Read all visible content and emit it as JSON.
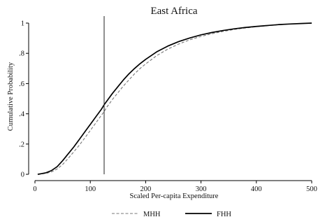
{
  "chart_data": {
    "type": "line",
    "title": "East Africa",
    "xlabel": "Scaled Per-capita Expenditure",
    "ylabel": "Cumulative Probability",
    "xlim": [
      0,
      500
    ],
    "ylim": [
      0,
      1
    ],
    "x_ticks": [
      {
        "value": 0,
        "label": "0"
      },
      {
        "value": 100,
        "label": "100"
      },
      {
        "value": 200,
        "label": "200"
      },
      {
        "value": 300,
        "label": "300"
      },
      {
        "value": 400,
        "label": "400"
      },
      {
        "value": 500,
        "label": "500"
      }
    ],
    "y_ticks": [
      {
        "value": 0,
        "label": "0"
      },
      {
        "value": 0.2,
        "label": ".2"
      },
      {
        "value": 0.4,
        "label": ".4"
      },
      {
        "value": 0.6,
        "label": ".6"
      },
      {
        "value": 0.8,
        "label": ".8"
      },
      {
        "value": 1,
        "label": "1"
      }
    ],
    "grid": false,
    "legend_position": "bottom",
    "reference_line_x": 125,
    "series": [
      {
        "name": "MHH",
        "style": "dashed",
        "color": "#777777",
        "points": [
          [
            5,
            0.0
          ],
          [
            10,
            0.002
          ],
          [
            20,
            0.006
          ],
          [
            30,
            0.016
          ],
          [
            40,
            0.035
          ],
          [
            50,
            0.065
          ],
          [
            60,
            0.105
          ],
          [
            70,
            0.148
          ],
          [
            80,
            0.192
          ],
          [
            90,
            0.24
          ],
          [
            100,
            0.29
          ],
          [
            110,
            0.34
          ],
          [
            120,
            0.39
          ],
          [
            125,
            0.415
          ],
          [
            130,
            0.445
          ],
          [
            140,
            0.495
          ],
          [
            150,
            0.54
          ],
          [
            160,
            0.585
          ],
          [
            170,
            0.625
          ],
          [
            180,
            0.665
          ],
          [
            190,
            0.7
          ],
          [
            200,
            0.73
          ],
          [
            220,
            0.785
          ],
          [
            240,
            0.828
          ],
          [
            260,
            0.862
          ],
          [
            280,
            0.89
          ],
          [
            300,
            0.912
          ],
          [
            320,
            0.93
          ],
          [
            340,
            0.945
          ],
          [
            360,
            0.958
          ],
          [
            380,
            0.968
          ],
          [
            400,
            0.976
          ],
          [
            420,
            0.983
          ],
          [
            440,
            0.989
          ],
          [
            460,
            0.994
          ],
          [
            480,
            0.997
          ],
          [
            500,
            1.0
          ]
        ]
      },
      {
        "name": "FHH",
        "style": "solid",
        "color": "#000000",
        "points": [
          [
            5,
            0.0
          ],
          [
            10,
            0.003
          ],
          [
            20,
            0.01
          ],
          [
            30,
            0.025
          ],
          [
            40,
            0.05
          ],
          [
            50,
            0.09
          ],
          [
            60,
            0.135
          ],
          [
            70,
            0.18
          ],
          [
            80,
            0.23
          ],
          [
            90,
            0.28
          ],
          [
            100,
            0.33
          ],
          [
            110,
            0.38
          ],
          [
            120,
            0.43
          ],
          [
            125,
            0.46
          ],
          [
            130,
            0.485
          ],
          [
            140,
            0.535
          ],
          [
            150,
            0.58
          ],
          [
            160,
            0.625
          ],
          [
            170,
            0.665
          ],
          [
            180,
            0.7
          ],
          [
            190,
            0.732
          ],
          [
            200,
            0.76
          ],
          [
            220,
            0.81
          ],
          [
            240,
            0.848
          ],
          [
            260,
            0.878
          ],
          [
            280,
            0.902
          ],
          [
            300,
            0.922
          ],
          [
            320,
            0.938
          ],
          [
            340,
            0.951
          ],
          [
            360,
            0.962
          ],
          [
            380,
            0.971
          ],
          [
            400,
            0.978
          ],
          [
            420,
            0.984
          ],
          [
            440,
            0.99
          ],
          [
            460,
            0.994
          ],
          [
            480,
            0.997
          ],
          [
            500,
            1.0
          ]
        ]
      }
    ]
  }
}
